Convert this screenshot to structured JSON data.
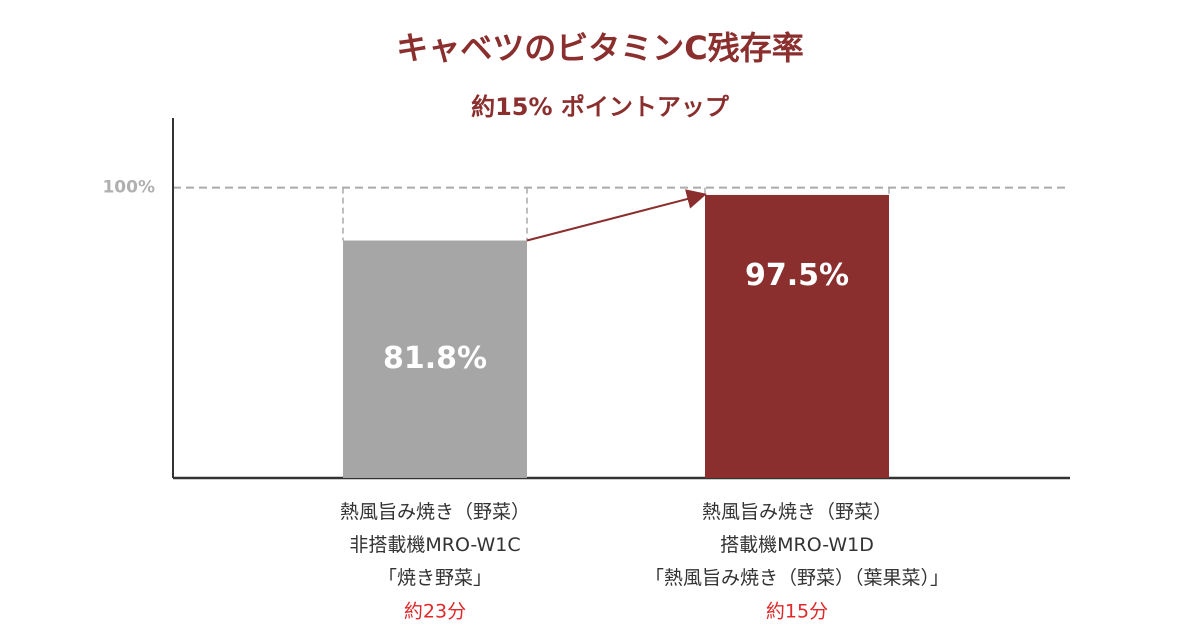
{
  "chart_data": {
    "type": "bar",
    "title": "キャベツのビタミンC残存率",
    "subtitle": "約15% ポイントアップ",
    "categories": [
      "熱風旨み焼き（野菜）\n非搭載機MRO-W1C\n「焼き野菜」",
      "熱風旨み焼き（野菜）\n搭載機MRO-W1D\n「熱風旨み焼き（野菜）（葉果菜）」"
    ],
    "category_notes": [
      "約23分",
      "約15分"
    ],
    "values": [
      81.8,
      97.5
    ],
    "value_labels": [
      "81.8%",
      "97.5%"
    ],
    "colors": [
      "#a6a6a6",
      "#8b2e2e"
    ],
    "ylim": [
      0,
      124
    ],
    "yticks": [
      {
        "value": 100,
        "label": "100%"
      }
    ],
    "grid": true
  }
}
